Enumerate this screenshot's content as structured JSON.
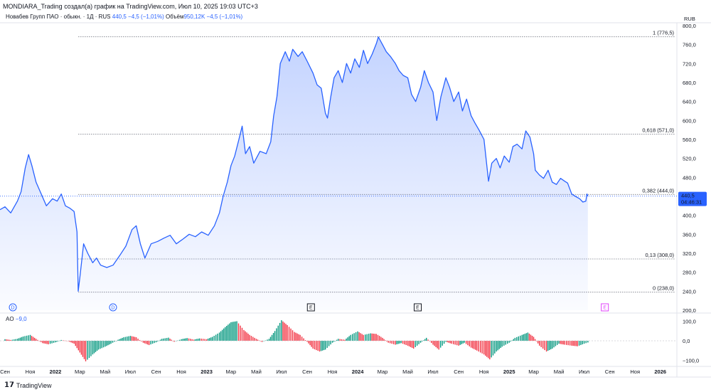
{
  "header": {
    "text": "MONDIARA_Trading создал(а) график на TradingView.com, Июл 10, 2025 19:03 UTC+3"
  },
  "legend": {
    "symbol": "Новабев Групп ПАО · обыкн. · 1Д · RUS",
    "price": "440,5",
    "change": "−4,5 (−1,01%)",
    "volume_label": "Объём",
    "volume_value": "950,12K",
    "volume_change": "−4,5 (−1,01%)"
  },
  "ao": {
    "label": "AO",
    "value": "−9,0"
  },
  "footer": {
    "brand": "TradingView"
  },
  "price_badge": {
    "price": "440,5",
    "countdown": "04:46:31"
  },
  "colors": {
    "line": "#2962ff",
    "fill": "#2962ff",
    "up": "#089981",
    "down": "#f23645",
    "grid": "#787b86"
  },
  "chart_data": {
    "type": "area",
    "currency": "RUB",
    "y_ticks": [
      200,
      240,
      280,
      320,
      360,
      400,
      440,
      480,
      520,
      560,
      600,
      640,
      680,
      720,
      760,
      800
    ],
    "y_tick_labels": [
      "200,0",
      "240,0",
      "280,0",
      "320,0",
      "360,0",
      "400,0",
      "440,0",
      "480,0",
      "520,0",
      "560,0",
      "600,0",
      "640,0",
      "680,0",
      "720,0",
      "760,0",
      "800,0"
    ],
    "ylim": [
      200,
      800
    ],
    "x_ticks": [
      "2021-09-01",
      "2021-11-01",
      "2022-01-01",
      "2022-03-01",
      "2022-05-01",
      "2022-07-01",
      "2022-09-01",
      "2022-11-01",
      "2023-01-01",
      "2023-03-01",
      "2023-05-01",
      "2023-07-01",
      "2023-09-01",
      "2023-11-01",
      "2024-01-01",
      "2024-03-01",
      "2024-05-01",
      "2024-07-01",
      "2024-09-01",
      "2024-11-01",
      "2025-01-01",
      "2025-03-01",
      "2025-05-01",
      "2025-07-01",
      "2025-09-01",
      "2025-11-01",
      "2026-01-01"
    ],
    "x_tick_labels": [
      "Сен",
      "Ноя",
      "2022",
      "Мар",
      "Май",
      "Июл",
      "Сен",
      "Ноя",
      "2023",
      "Мар",
      "Май",
      "Июл",
      "Сен",
      "Ноя",
      "2024",
      "Мар",
      "Май",
      "Июл",
      "Сен",
      "Ноя",
      "2025",
      "Мар",
      "Май",
      "Июл",
      "Сен",
      "Ноя",
      "2026"
    ],
    "xlim": [
      "2021-08-20",
      "2026-02-10"
    ],
    "series": [
      {
        "points": [
          [
            "2021-08-20",
            412
          ],
          [
            "2021-09-01",
            418
          ],
          [
            "2021-09-15",
            405
          ],
          [
            "2021-10-01",
            430
          ],
          [
            "2021-10-10",
            450
          ],
          [
            "2021-10-20",
            500
          ],
          [
            "2021-10-28",
            528
          ],
          [
            "2021-11-05",
            505
          ],
          [
            "2021-11-15",
            470
          ],
          [
            "2021-11-25",
            450
          ],
          [
            "2021-12-10",
            420
          ],
          [
            "2021-12-25",
            435
          ],
          [
            "2022-01-05",
            430
          ],
          [
            "2022-01-15",
            445
          ],
          [
            "2022-01-25",
            420
          ],
          [
            "2022-02-05",
            415
          ],
          [
            "2022-02-15",
            408
          ],
          [
            "2022-02-22",
            365
          ],
          [
            "2022-02-25",
            240
          ],
          [
            "2022-03-01",
            270
          ],
          [
            "2022-03-10",
            340
          ],
          [
            "2022-03-20",
            320
          ],
          [
            "2022-04-01",
            300
          ],
          [
            "2022-04-10",
            310
          ],
          [
            "2022-04-20",
            295
          ],
          [
            "2022-05-05",
            290
          ],
          [
            "2022-05-20",
            295
          ],
          [
            "2022-06-05",
            315
          ],
          [
            "2022-06-20",
            335
          ],
          [
            "2022-07-05",
            370
          ],
          [
            "2022-07-15",
            378
          ],
          [
            "2022-07-25",
            340
          ],
          [
            "2022-08-05",
            310
          ],
          [
            "2022-08-20",
            340
          ],
          [
            "2022-09-05",
            345
          ],
          [
            "2022-09-20",
            352
          ],
          [
            "2022-10-05",
            358
          ],
          [
            "2022-10-20",
            340
          ],
          [
            "2022-11-05",
            350
          ],
          [
            "2022-11-20",
            360
          ],
          [
            "2022-12-05",
            355
          ],
          [
            "2022-12-20",
            365
          ],
          [
            "2023-01-05",
            358
          ],
          [
            "2023-01-20",
            378
          ],
          [
            "2023-02-01",
            405
          ],
          [
            "2023-02-10",
            440
          ],
          [
            "2023-02-20",
            470
          ],
          [
            "2023-03-01",
            505
          ],
          [
            "2023-03-10",
            525
          ],
          [
            "2023-03-20",
            560
          ],
          [
            "2023-03-28",
            588
          ],
          [
            "2023-04-05",
            530
          ],
          [
            "2023-04-15",
            545
          ],
          [
            "2023-04-25",
            510
          ],
          [
            "2023-05-10",
            535
          ],
          [
            "2023-05-25",
            530
          ],
          [
            "2023-06-05",
            555
          ],
          [
            "2023-06-12",
            610
          ],
          [
            "2023-06-20",
            650
          ],
          [
            "2023-06-28",
            720
          ],
          [
            "2023-07-10",
            745
          ],
          [
            "2023-07-20",
            725
          ],
          [
            "2023-07-28",
            750
          ],
          [
            "2023-08-10",
            735
          ],
          [
            "2023-08-20",
            745
          ],
          [
            "2023-09-01",
            725
          ],
          [
            "2023-09-15",
            700
          ],
          [
            "2023-09-25",
            675
          ],
          [
            "2023-10-05",
            668
          ],
          [
            "2023-10-15",
            615
          ],
          [
            "2023-10-20",
            605
          ],
          [
            "2023-10-28",
            650
          ],
          [
            "2023-11-05",
            690
          ],
          [
            "2023-11-15",
            705
          ],
          [
            "2023-11-25",
            680
          ],
          [
            "2023-12-05",
            720
          ],
          [
            "2023-12-15",
            700
          ],
          [
            "2023-12-25",
            730
          ],
          [
            "2024-01-05",
            712
          ],
          [
            "2024-01-15",
            748
          ],
          [
            "2024-01-25",
            720
          ],
          [
            "2024-02-05",
            740
          ],
          [
            "2024-02-15",
            762
          ],
          [
            "2024-02-20",
            776
          ],
          [
            "2024-03-01",
            760
          ],
          [
            "2024-03-10",
            745
          ],
          [
            "2024-03-20",
            735
          ],
          [
            "2024-04-01",
            720
          ],
          [
            "2024-04-10",
            705
          ],
          [
            "2024-04-20",
            695
          ],
          [
            "2024-05-01",
            690
          ],
          [
            "2024-05-10",
            655
          ],
          [
            "2024-05-20",
            640
          ],
          [
            "2024-06-01",
            670
          ],
          [
            "2024-06-10",
            705
          ],
          [
            "2024-06-20",
            680
          ],
          [
            "2024-07-01",
            660
          ],
          [
            "2024-07-10",
            600
          ],
          [
            "2024-07-20",
            650
          ],
          [
            "2024-08-01",
            690
          ],
          [
            "2024-08-10",
            670
          ],
          [
            "2024-08-20",
            640
          ],
          [
            "2024-09-01",
            660
          ],
          [
            "2024-09-10",
            620
          ],
          [
            "2024-09-20",
            645
          ],
          [
            "2024-10-01",
            610
          ],
          [
            "2024-10-10",
            595
          ],
          [
            "2024-10-20",
            580
          ],
          [
            "2024-11-01",
            560
          ],
          [
            "2024-11-08",
            505
          ],
          [
            "2024-11-12",
            472
          ],
          [
            "2024-11-20",
            510
          ],
          [
            "2024-12-01",
            520
          ],
          [
            "2024-12-10",
            500
          ],
          [
            "2024-12-20",
            525
          ],
          [
            "2025-01-01",
            512
          ],
          [
            "2025-01-10",
            545
          ],
          [
            "2025-01-20",
            550
          ],
          [
            "2025-02-01",
            540
          ],
          [
            "2025-02-10",
            578
          ],
          [
            "2025-02-20",
            565
          ],
          [
            "2025-03-01",
            530
          ],
          [
            "2025-03-05",
            495
          ],
          [
            "2025-03-15",
            485
          ],
          [
            "2025-03-25",
            478
          ],
          [
            "2025-04-05",
            495
          ],
          [
            "2025-04-15",
            470
          ],
          [
            "2025-04-25",
            465
          ],
          [
            "2025-05-05",
            478
          ],
          [
            "2025-05-15",
            472
          ],
          [
            "2025-05-22",
            468
          ],
          [
            "2025-06-01",
            445
          ],
          [
            "2025-06-10",
            440
          ],
          [
            "2025-06-20",
            435
          ],
          [
            "2025-06-28",
            428
          ],
          [
            "2025-07-05",
            430
          ],
          [
            "2025-07-08",
            445
          ],
          [
            "2025-07-10",
            440.5
          ]
        ]
      }
    ],
    "fib_levels": [
      {
        "label": "1 (776,5)",
        "value": 776.5
      },
      {
        "label": "0,618 (571,0)",
        "value": 571.0
      },
      {
        "label": "0,382 (444,0)",
        "value": 444.0
      },
      {
        "label": "0,13 (308,0)",
        "value": 308.0
      },
      {
        "label": "0 (238,0)",
        "value": 238.0
      }
    ],
    "fib_start": "2022-02-25",
    "events": [
      {
        "date": "2021-09-20",
        "label": "D",
        "kind": "dividend"
      },
      {
        "date": "2022-05-20",
        "label": "D",
        "kind": "dividend"
      },
      {
        "date": "2023-09-10",
        "label": "E",
        "kind": "earnings"
      },
      {
        "date": "2024-05-25",
        "label": "E",
        "kind": "earnings"
      },
      {
        "date": "2025-08-20",
        "label": "E",
        "kind": "earnings-future"
      }
    ],
    "ao_ticks": [
      -100,
      0,
      100
    ],
    "ao_tick_labels": [
      "−100,0",
      "0,0",
      "100,0"
    ],
    "ao_ylim": [
      -120,
      120
    ],
    "ao": [
      [
        "2021-09-01",
        8
      ],
      [
        "2021-09-15",
        4
      ],
      [
        "2021-10-01",
        10
      ],
      [
        "2021-10-15",
        22
      ],
      [
        "2021-11-01",
        30
      ],
      [
        "2021-11-15",
        10
      ],
      [
        "2021-12-01",
        -12
      ],
      [
        "2021-12-15",
        -18
      ],
      [
        "2022-01-01",
        -8
      ],
      [
        "2022-01-15",
        4
      ],
      [
        "2022-02-01",
        -2
      ],
      [
        "2022-02-15",
        -15
      ],
      [
        "2022-03-01",
        -60
      ],
      [
        "2022-03-15",
        -105
      ],
      [
        "2022-04-01",
        -70
      ],
      [
        "2022-04-15",
        -45
      ],
      [
        "2022-05-01",
        -30
      ],
      [
        "2022-05-15",
        -15
      ],
      [
        "2022-06-01",
        5
      ],
      [
        "2022-06-15",
        18
      ],
      [
        "2022-07-01",
        25
      ],
      [
        "2022-07-15",
        18
      ],
      [
        "2022-08-01",
        -10
      ],
      [
        "2022-08-15",
        -22
      ],
      [
        "2022-09-01",
        -8
      ],
      [
        "2022-09-15",
        10
      ],
      [
        "2022-10-01",
        16
      ],
      [
        "2022-10-15",
        -5
      ],
      [
        "2022-11-01",
        8
      ],
      [
        "2022-11-15",
        14
      ],
      [
        "2022-12-01",
        6
      ],
      [
        "2022-12-15",
        12
      ],
      [
        "2023-01-01",
        8
      ],
      [
        "2023-01-15",
        20
      ],
      [
        "2023-02-01",
        42
      ],
      [
        "2023-02-15",
        70
      ],
      [
        "2023-03-01",
        95
      ],
      [
        "2023-03-15",
        100
      ],
      [
        "2023-04-01",
        55
      ],
      [
        "2023-04-15",
        30
      ],
      [
        "2023-05-01",
        10
      ],
      [
        "2023-05-15",
        -6
      ],
      [
        "2023-06-01",
        10
      ],
      [
        "2023-06-15",
        50
      ],
      [
        "2023-07-01",
        105
      ],
      [
        "2023-07-15",
        80
      ],
      [
        "2023-08-01",
        45
      ],
      [
        "2023-08-15",
        30
      ],
      [
        "2023-09-01",
        -5
      ],
      [
        "2023-09-15",
        -40
      ],
      [
        "2023-10-01",
        -55
      ],
      [
        "2023-10-15",
        -45
      ],
      [
        "2023-11-01",
        -10
      ],
      [
        "2023-11-15",
        10
      ],
      [
        "2023-12-01",
        5
      ],
      [
        "2023-12-15",
        30
      ],
      [
        "2024-01-01",
        48
      ],
      [
        "2024-01-15",
        30
      ],
      [
        "2024-02-01",
        38
      ],
      [
        "2024-02-15",
        35
      ],
      [
        "2024-03-01",
        15
      ],
      [
        "2024-03-15",
        -10
      ],
      [
        "2024-04-01",
        -20
      ],
      [
        "2024-04-15",
        -12
      ],
      [
        "2024-05-01",
        -25
      ],
      [
        "2024-05-15",
        -40
      ],
      [
        "2024-06-01",
        -10
      ],
      [
        "2024-06-15",
        15
      ],
      [
        "2024-07-01",
        -20
      ],
      [
        "2024-07-15",
        -45
      ],
      [
        "2024-08-01",
        -5
      ],
      [
        "2024-08-15",
        -15
      ],
      [
        "2024-09-01",
        -25
      ],
      [
        "2024-09-15",
        -10
      ],
      [
        "2024-10-01",
        -35
      ],
      [
        "2024-10-15",
        -50
      ],
      [
        "2024-11-01",
        -70
      ],
      [
        "2024-11-15",
        -95
      ],
      [
        "2024-12-01",
        -55
      ],
      [
        "2024-12-15",
        -30
      ],
      [
        "2025-01-01",
        -10
      ],
      [
        "2025-01-15",
        15
      ],
      [
        "2025-02-01",
        30
      ],
      [
        "2025-02-15",
        42
      ],
      [
        "2025-03-01",
        20
      ],
      [
        "2025-03-15",
        -25
      ],
      [
        "2025-04-01",
        -55
      ],
      [
        "2025-04-15",
        -40
      ],
      [
        "2025-05-01",
        -15
      ],
      [
        "2025-05-15",
        -20
      ],
      [
        "2025-06-01",
        -25
      ],
      [
        "2025-06-15",
        -28
      ],
      [
        "2025-07-01",
        -15
      ],
      [
        "2025-07-10",
        -9
      ]
    ]
  }
}
